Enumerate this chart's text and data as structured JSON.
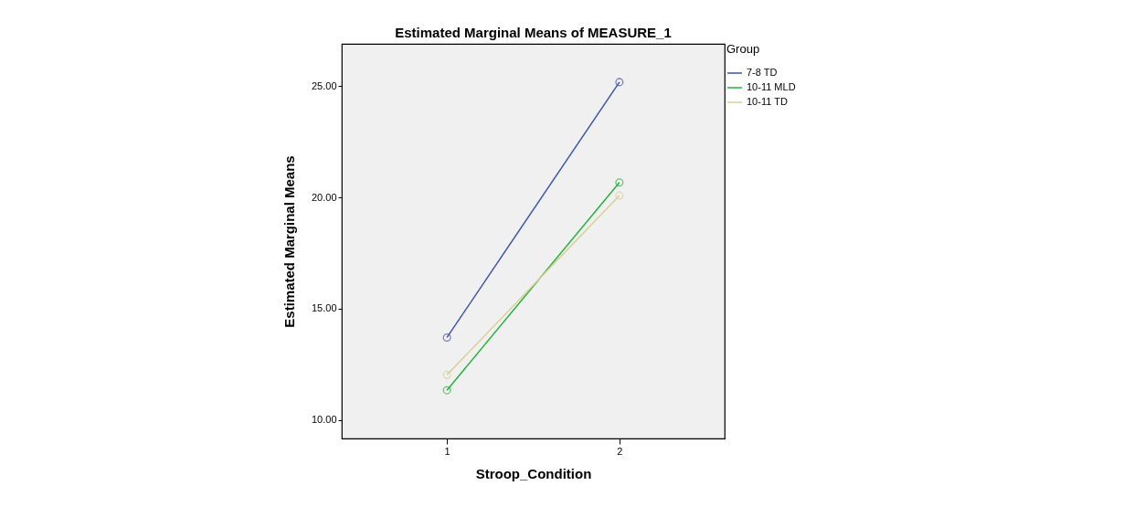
{
  "chart_data": {
    "type": "line",
    "title": "Estimated Marginal Means of MEASURE_1",
    "xlabel": "Stroop_Condition",
    "ylabel": "Estimated Marginal Means",
    "legend_title": "Group",
    "categories": [
      "1",
      "2"
    ],
    "series": [
      {
        "name": "7-8 TD",
        "color": "#3f53a8",
        "values": [
          13.7,
          25.18
        ]
      },
      {
        "name": "10-11 MLD",
        "color": "#22b33a",
        "values": [
          11.33,
          20.67
        ]
      },
      {
        "name": "10-11 TD",
        "color": "#d8cf97",
        "values": [
          12.02,
          20.08
        ]
      }
    ],
    "ylim": [
      9.16,
      26.9
    ],
    "yticks": [
      {
        "value": 10,
        "label": "10.00"
      },
      {
        "value": 15,
        "label": "15.00"
      },
      {
        "value": 20,
        "label": "20.00"
      },
      {
        "value": 25,
        "label": "25.00"
      }
    ],
    "grid": false,
    "legend": "top right",
    "marker": "circle",
    "line_style": "solid"
  }
}
